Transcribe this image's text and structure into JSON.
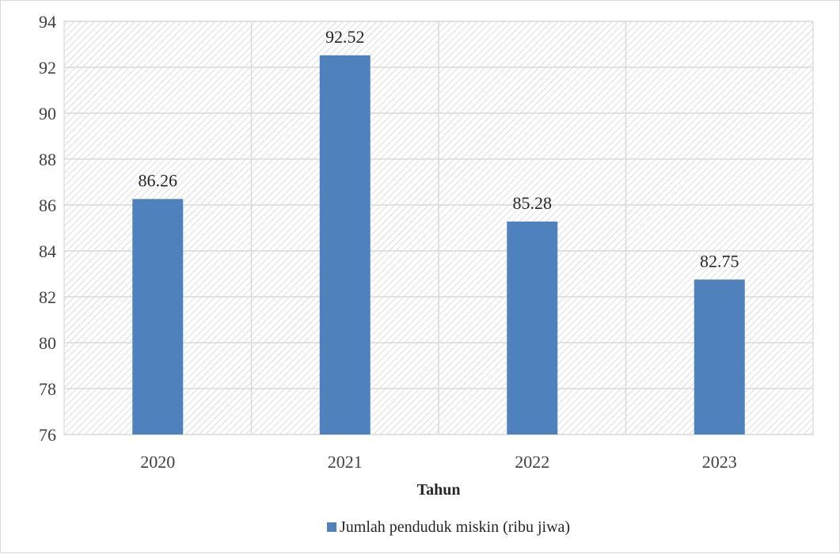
{
  "chart_data": {
    "type": "bar",
    "categories": [
      "2020",
      "2021",
      "2022",
      "2023"
    ],
    "series": [
      {
        "name": "Jumlah penduduk miskin (ribu jiwa)",
        "values": [
          86.26,
          92.52,
          85.28,
          82.75
        ],
        "color": "#4f81bd"
      }
    ],
    "data_labels": [
      "86.26",
      "92.52",
      "85.28",
      "82.75"
    ],
    "xlabel": "Tahun",
    "ylabel": "",
    "ylim": [
      76,
      94
    ],
    "yticks": [
      76,
      78,
      80,
      82,
      84,
      86,
      88,
      90,
      92,
      94
    ],
    "grid": true,
    "plot_background": "diagonal-hatch",
    "legend_position": "bottom"
  }
}
